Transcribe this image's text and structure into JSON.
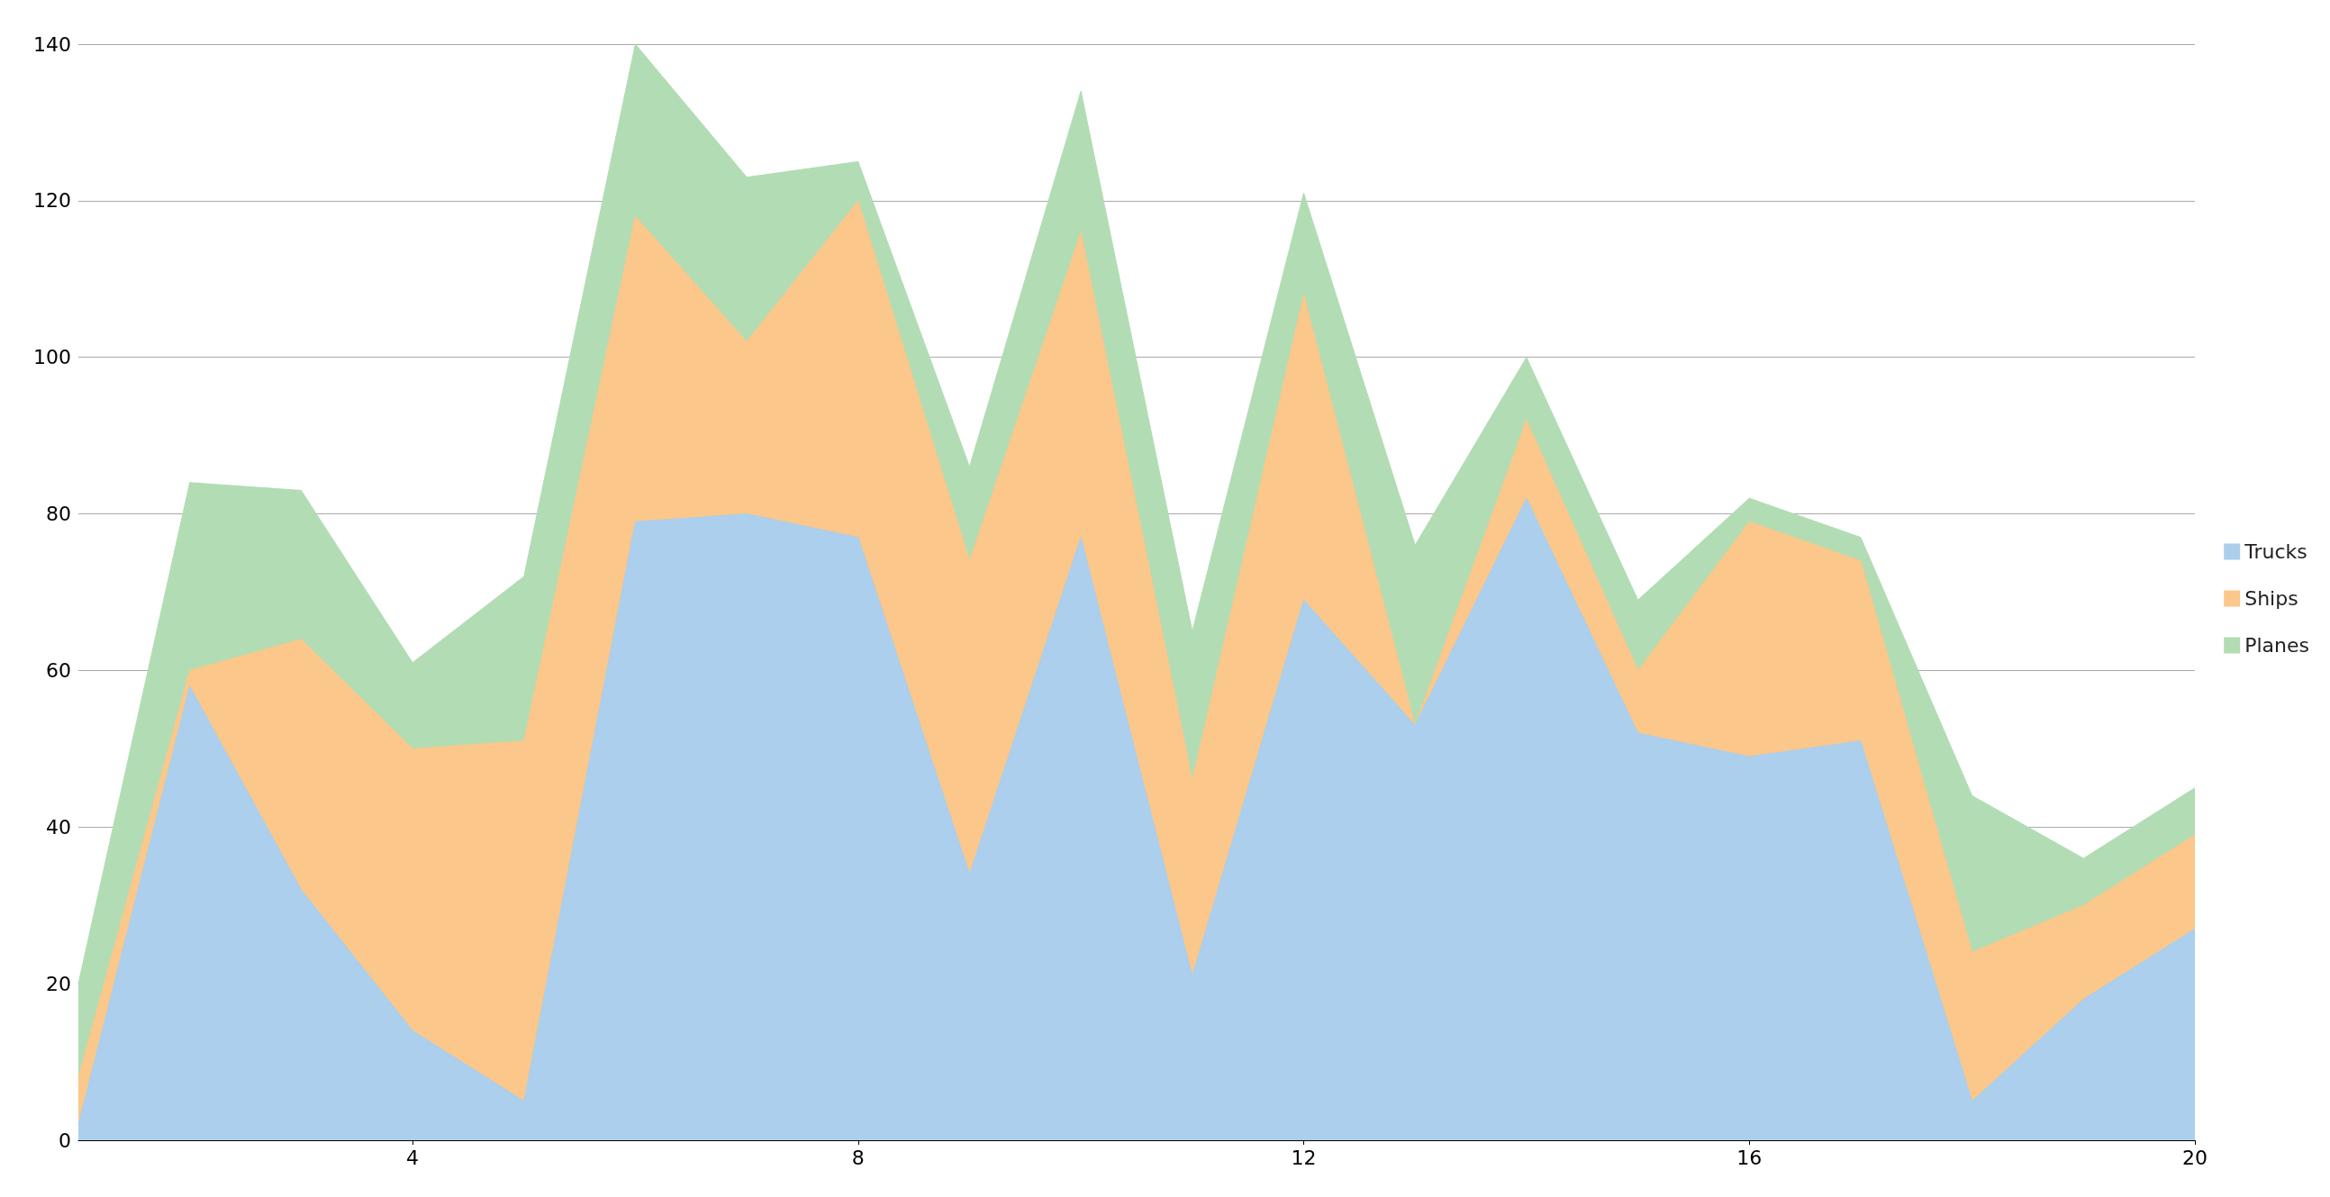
{
  "chart_data": {
    "type": "area",
    "stacked": true,
    "x": [
      1,
      2,
      3,
      4,
      5,
      6,
      7,
      8,
      9,
      10,
      11,
      12,
      13,
      14,
      15,
      16,
      17,
      18,
      19,
      20
    ],
    "series": [
      {
        "name": "Trucks",
        "color": "#abcfec",
        "values": [
          2,
          58,
          32,
          14,
          5,
          79,
          80,
          77,
          34,
          77,
          21,
          69,
          53,
          82,
          52,
          49,
          51,
          5,
          18,
          27
        ]
      },
      {
        "name": "Ships",
        "color": "#fbc78a",
        "values": [
          6,
          2,
          32,
          36,
          46,
          39,
          22,
          43,
          40,
          39,
          25,
          39,
          0,
          10,
          8,
          30,
          23,
          19,
          12,
          12
        ]
      },
      {
        "name": "Planes",
        "color": "#b2dcb4",
        "values": [
          12,
          24,
          19,
          11,
          21,
          22,
          21,
          5,
          12,
          18,
          19,
          13,
          23,
          8,
          9,
          3,
          3,
          20,
          6,
          6
        ]
      }
    ],
    "xlim": [
      1,
      20
    ],
    "xticks": [
      4,
      8,
      12,
      16,
      20
    ],
    "ylim": [
      0,
      140
    ],
    "yticks": [
      0,
      20,
      40,
      60,
      80,
      100,
      120,
      140
    ],
    "grid": "y",
    "legend": "right"
  }
}
